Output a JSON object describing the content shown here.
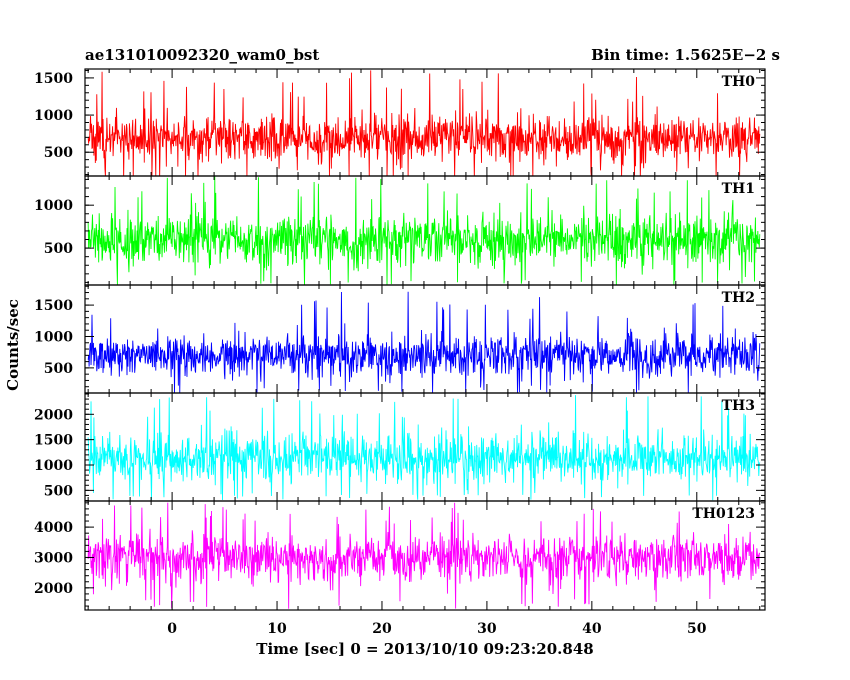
{
  "header": {
    "left_title": "ae131010092320_wam0_bst",
    "right_title": "Bin time: 1.5625E−2 s"
  },
  "chart_data": {
    "type": "line",
    "title": "ae131010092320_wam0_bst",
    "bin_time": "1.5625E−2 s",
    "xlabel": "Time [sec] 0 = 2013/10/10 09:23:20.848",
    "ylabel": "Counts/sec",
    "xlim": [
      -8.3,
      56.5
    ],
    "x_range_data": [
      -8.0,
      56.0
    ],
    "x_ticks": [
      0,
      10,
      20,
      30,
      40,
      50
    ],
    "x_tick_labels": [
      "0",
      "10",
      "20",
      "30",
      "40",
      "50"
    ],
    "grid": false,
    "panels": [
      {
        "name": "TH0",
        "color": "#ff0000",
        "ylim": [
          180,
          1620
        ],
        "y_ticks": [
          500,
          1000,
          1500
        ],
        "y_tick_labels": [
          "500",
          "1000",
          "1500"
        ],
        "baseline": 690,
        "envelope": {
          "typical_low": 180,
          "typical_high": 1150,
          "max": 1620,
          "min": 150
        }
      },
      {
        "name": "TH1",
        "color": "#00ff00",
        "ylim": [
          70,
          1340
        ],
        "y_ticks": [
          500,
          1000
        ],
        "y_tick_labels": [
          "500",
          "1000"
        ],
        "baseline": 600,
        "envelope": {
          "typical_low": 130,
          "typical_high": 1020,
          "max": 1340,
          "min": 70
        }
      },
      {
        "name": "TH2",
        "color": "#0000ff",
        "ylim": [
          100,
          1820
        ],
        "y_ticks": [
          500,
          1000,
          1500
        ],
        "y_tick_labels": [
          "500",
          "1000",
          "1500"
        ],
        "baseline": 700,
        "envelope": {
          "typical_low": 150,
          "typical_high": 1200,
          "max": 1780,
          "min": 100
        }
      },
      {
        "name": "TH3",
        "color": "#00ffff",
        "ylim": [
          290,
          2420
        ],
        "y_ticks": [
          500,
          1000,
          1500,
          2000
        ],
        "y_tick_labels": [
          "500",
          "1000",
          "1500",
          "2000"
        ],
        "baseline": 1140,
        "envelope": {
          "typical_low": 450,
          "typical_high": 1900,
          "max": 2380,
          "min": 300
        }
      },
      {
        "name": "TH0123",
        "color": "#ff00ff",
        "ylim": [
          1270,
          4860
        ],
        "y_ticks": [
          2000,
          3000,
          4000
        ],
        "y_tick_labels": [
          "2000",
          "3000",
          "4000"
        ],
        "baseline": 3000,
        "envelope": {
          "typical_low": 1650,
          "typical_high": 4100,
          "max": 4850,
          "min": 1300
        }
      }
    ]
  }
}
